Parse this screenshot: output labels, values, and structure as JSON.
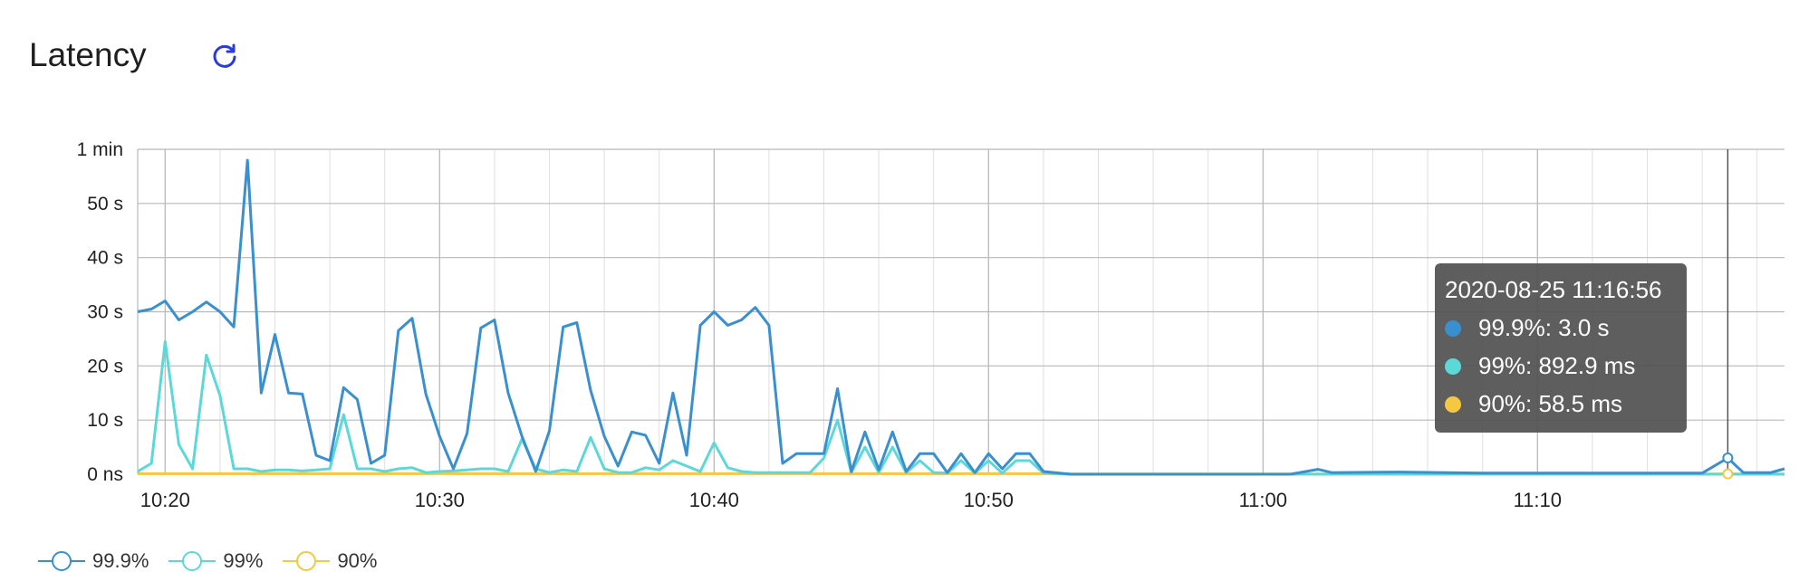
{
  "header": {
    "title": "Latency",
    "refresh_icon": "refresh-icon"
  },
  "colors": {
    "s999": "#3a8fcf",
    "s99": "#5dd8d8",
    "s90": "#f5c842",
    "grid_major": "#b8b8b8",
    "grid_minor": "#e0e0e0"
  },
  "tooltip": {
    "title": "2020-08-25 11:16:56",
    "rows": [
      {
        "label": "99.9%: 3.0 s",
        "color": "#3a8fcf"
      },
      {
        "label": "99%: 892.9 ms",
        "color": "#5dd8d8"
      },
      {
        "label": "90%: 58.5 ms",
        "color": "#f5c842"
      }
    ]
  },
  "legend": [
    {
      "label": "99.9%",
      "color": "#3a8fcf"
    },
    {
      "label": "99%",
      "color": "#5dd8d8"
    },
    {
      "label": "90%",
      "color": "#f5c842"
    }
  ],
  "chart_data": {
    "type": "line",
    "title": "Latency",
    "xlim": [
      "10:19:00",
      "11:19:00"
    ],
    "ylim": [
      0,
      60
    ],
    "y_unit": "s",
    "y_tick_values": [
      0,
      10,
      20,
      30,
      40,
      50,
      60
    ],
    "y_tick_labels": [
      "0 ns",
      "10 s",
      "20 s",
      "30 s",
      "40 s",
      "50 s",
      "1 min"
    ],
    "x_tick_values": [
      "10:20:00",
      "10:30:00",
      "10:40:00",
      "10:50:00",
      "11:00:00",
      "11:10:00"
    ],
    "x_tick_labels": [
      "10:20",
      "10:30",
      "10:40",
      "10:50",
      "11:00",
      "11:10"
    ],
    "grid": true,
    "legend_position": "bottom-left",
    "hover_time": "11:16:56",
    "series": [
      {
        "name": "99.9%",
        "color": "#3a8fcf",
        "points": [
          [
            "10:19:00",
            30.0
          ],
          [
            "10:19:30",
            30.5
          ],
          [
            "10:20:00",
            32.0
          ],
          [
            "10:20:30",
            28.5
          ],
          [
            "10:21:00",
            30.0
          ],
          [
            "10:21:30",
            31.8
          ],
          [
            "10:22:00",
            30.0
          ],
          [
            "10:22:30",
            27.2
          ],
          [
            "10:23:00",
            58.0
          ],
          [
            "10:23:30",
            15.0
          ],
          [
            "10:24:00",
            25.8
          ],
          [
            "10:24:30",
            15.0
          ],
          [
            "10:25:00",
            14.8
          ],
          [
            "10:25:30",
            3.5
          ],
          [
            "10:26:00",
            2.5
          ],
          [
            "10:26:30",
            16.0
          ],
          [
            "10:27:00",
            13.8
          ],
          [
            "10:27:30",
            2.0
          ],
          [
            "10:28:00",
            3.5
          ],
          [
            "10:28:30",
            26.5
          ],
          [
            "10:29:00",
            28.8
          ],
          [
            "10:29:30",
            14.8
          ],
          [
            "10:30:00",
            7.0
          ],
          [
            "10:30:30",
            1.0
          ],
          [
            "10:31:00",
            7.5
          ],
          [
            "10:31:30",
            27.0
          ],
          [
            "10:32:00",
            28.5
          ],
          [
            "10:32:30",
            15.0
          ],
          [
            "10:33:00",
            7.0
          ],
          [
            "10:33:30",
            0.5
          ],
          [
            "10:34:00",
            8.0
          ],
          [
            "10:34:30",
            27.2
          ],
          [
            "10:35:00",
            28.0
          ],
          [
            "10:35:30",
            15.5
          ],
          [
            "10:36:00",
            7.0
          ],
          [
            "10:36:30",
            1.5
          ],
          [
            "10:37:00",
            7.8
          ],
          [
            "10:37:30",
            7.2
          ],
          [
            "10:38:00",
            2.0
          ],
          [
            "10:38:30",
            15.0
          ],
          [
            "10:39:00",
            3.5
          ],
          [
            "10:39:30",
            27.5
          ],
          [
            "10:40:00",
            30.0
          ],
          [
            "10:40:30",
            27.5
          ],
          [
            "10:41:00",
            28.5
          ],
          [
            "10:41:30",
            30.8
          ],
          [
            "10:42:00",
            27.5
          ],
          [
            "10:42:30",
            2.0
          ],
          [
            "10:43:00",
            3.8
          ],
          [
            "10:43:30",
            3.8
          ],
          [
            "10:44:00",
            3.8
          ],
          [
            "10:44:30",
            15.8
          ],
          [
            "10:45:00",
            0.5
          ],
          [
            "10:45:30",
            7.8
          ],
          [
            "10:46:00",
            0.8
          ],
          [
            "10:46:30",
            7.8
          ],
          [
            "10:47:00",
            0.5
          ],
          [
            "10:47:30",
            3.8
          ],
          [
            "10:48:00",
            3.8
          ],
          [
            "10:48:30",
            0.3
          ],
          [
            "10:49:00",
            3.8
          ],
          [
            "10:49:30",
            0.3
          ],
          [
            "10:50:00",
            3.8
          ],
          [
            "10:50:30",
            1.0
          ],
          [
            "10:51:00",
            3.8
          ],
          [
            "10:51:30",
            3.8
          ],
          [
            "10:52:00",
            0.5
          ],
          [
            "10:53:00",
            0.0
          ],
          [
            "11:00:00",
            0.0
          ],
          [
            "11:01:00",
            0.0
          ],
          [
            "11:02:00",
            0.9
          ],
          [
            "11:02:30",
            0.3
          ],
          [
            "11:05:00",
            0.4
          ],
          [
            "11:08:00",
            0.2
          ],
          [
            "11:10:00",
            0.2
          ],
          [
            "11:16:00",
            0.2
          ],
          [
            "11:16:56",
            3.0
          ],
          [
            "11:17:30",
            0.3
          ],
          [
            "11:18:30",
            0.3
          ],
          [
            "11:19:00",
            1.0
          ]
        ]
      },
      {
        "name": "99%",
        "color": "#5dd8d8",
        "points": [
          [
            "10:19:00",
            0.5
          ],
          [
            "10:19:30",
            2.0
          ],
          [
            "10:20:00",
            24.5
          ],
          [
            "10:20:30",
            5.5
          ],
          [
            "10:21:00",
            1.0
          ],
          [
            "10:21:30",
            22.0
          ],
          [
            "10:22:00",
            14.5
          ],
          [
            "10:22:30",
            1.0
          ],
          [
            "10:23:00",
            1.0
          ],
          [
            "10:23:30",
            0.5
          ],
          [
            "10:24:00",
            0.8
          ],
          [
            "10:24:30",
            0.8
          ],
          [
            "10:25:00",
            0.6
          ],
          [
            "10:25:30",
            0.8
          ],
          [
            "10:26:00",
            1.0
          ],
          [
            "10:26:30",
            11.0
          ],
          [
            "10:27:00",
            1.0
          ],
          [
            "10:27:30",
            1.0
          ],
          [
            "10:28:00",
            0.5
          ],
          [
            "10:28:30",
            1.0
          ],
          [
            "10:29:00",
            1.2
          ],
          [
            "10:29:30",
            0.3
          ],
          [
            "10:30:00",
            0.5
          ],
          [
            "10:30:30",
            0.6
          ],
          [
            "10:31:00",
            0.8
          ],
          [
            "10:31:30",
            1.0
          ],
          [
            "10:32:00",
            1.0
          ],
          [
            "10:32:30",
            0.5
          ],
          [
            "10:33:00",
            6.5
          ],
          [
            "10:33:30",
            1.0
          ],
          [
            "10:34:00",
            0.3
          ],
          [
            "10:34:30",
            0.8
          ],
          [
            "10:35:00",
            0.5
          ],
          [
            "10:35:30",
            6.8
          ],
          [
            "10:36:00",
            1.0
          ],
          [
            "10:36:30",
            0.3
          ],
          [
            "10:37:00",
            0.3
          ],
          [
            "10:37:30",
            1.2
          ],
          [
            "10:38:00",
            0.8
          ],
          [
            "10:38:30",
            2.5
          ],
          [
            "10:39:00",
            1.5
          ],
          [
            "10:39:30",
            0.5
          ],
          [
            "10:40:00",
            5.8
          ],
          [
            "10:40:30",
            1.2
          ],
          [
            "10:41:00",
            0.5
          ],
          [
            "10:41:30",
            0.3
          ],
          [
            "10:42:00",
            0.3
          ],
          [
            "10:42:30",
            0.3
          ],
          [
            "10:43:00",
            0.3
          ],
          [
            "10:43:30",
            0.3
          ],
          [
            "10:44:00",
            3.0
          ],
          [
            "10:44:30",
            10.0
          ],
          [
            "10:45:00",
            0.3
          ],
          [
            "10:45:30",
            5.0
          ],
          [
            "10:46:00",
            0.3
          ],
          [
            "10:46:30",
            5.0
          ],
          [
            "10:47:00",
            0.3
          ],
          [
            "10:47:30",
            2.5
          ],
          [
            "10:48:00",
            0.3
          ],
          [
            "10:48:30",
            0.2
          ],
          [
            "10:49:00",
            2.5
          ],
          [
            "10:49:30",
            0.2
          ],
          [
            "10:50:00",
            2.5
          ],
          [
            "10:50:30",
            0.2
          ],
          [
            "10:51:00",
            2.5
          ],
          [
            "10:51:30",
            2.5
          ],
          [
            "10:52:00",
            0.2
          ],
          [
            "10:53:00",
            0.0
          ],
          [
            "11:19:00",
            0.0
          ]
        ]
      },
      {
        "name": "90%",
        "color": "#f5c842",
        "points": [
          [
            "10:19:00",
            0.1
          ],
          [
            "10:30:00",
            0.1
          ],
          [
            "10:52:00",
            0.1
          ],
          [
            "10:53:00",
            0.05
          ],
          [
            "11:16:00",
            0.05
          ],
          [
            "11:16:56",
            0.06
          ],
          [
            "11:19:00",
            0.05
          ]
        ]
      }
    ]
  }
}
